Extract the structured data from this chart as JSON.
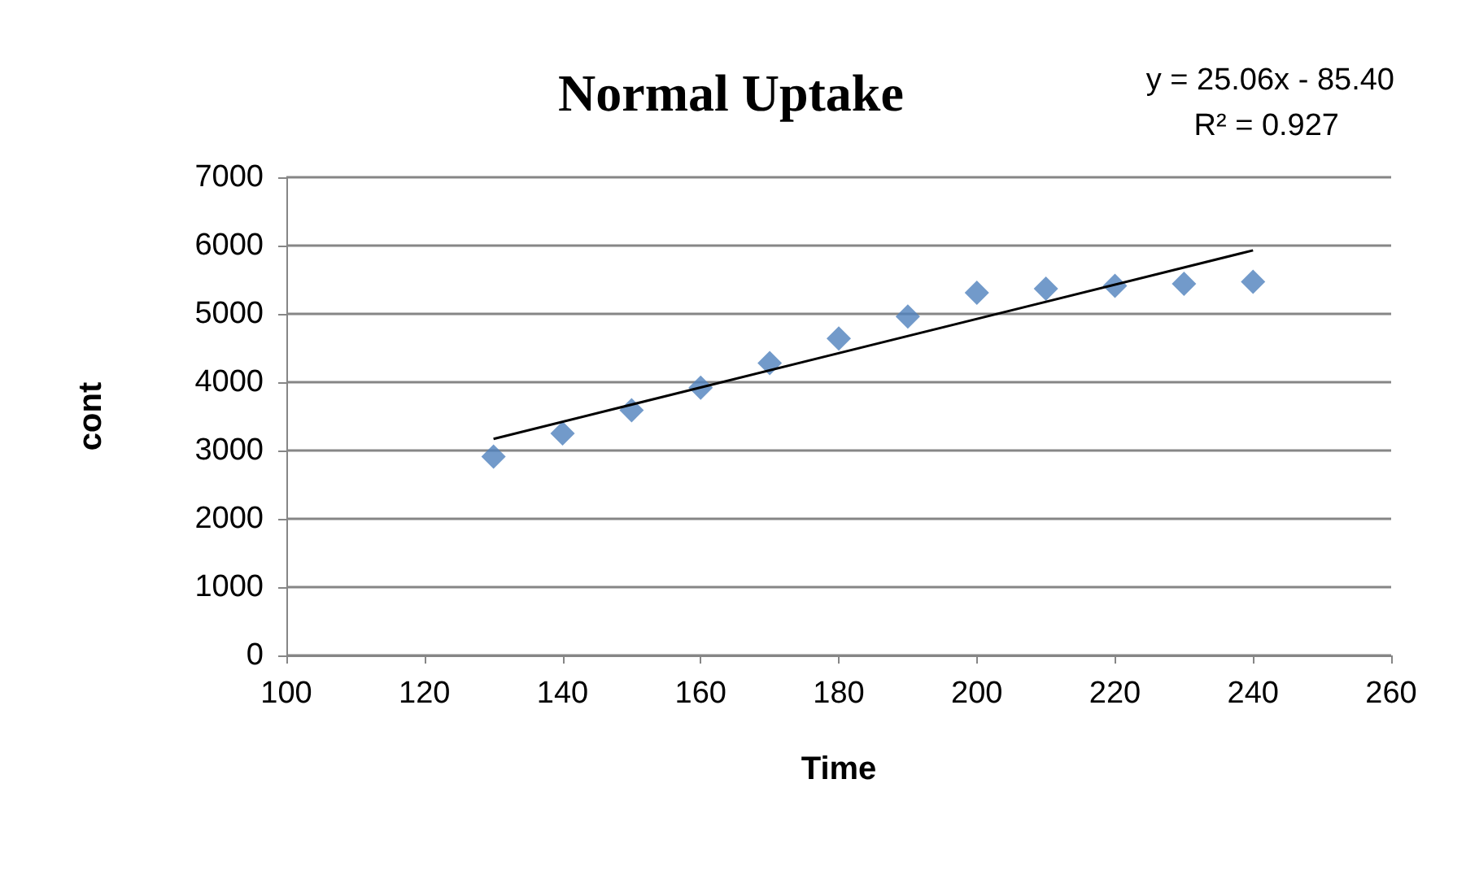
{
  "chart_data": {
    "type": "scatter",
    "title": "Normal Uptake",
    "xlabel": "Time",
    "ylabel": "cont",
    "annotations": [
      "y = 25.06x - 85.40",
      "R² = 0.927"
    ],
    "x": [
      130,
      140,
      150,
      160,
      170,
      180,
      190,
      200,
      210,
      220,
      230,
      240
    ],
    "series": [
      {
        "color": "#4f81bd",
        "marker": "diamond",
        "values": [
          2910,
          3250,
          3590,
          3920,
          4280,
          4640,
          4960,
          5310,
          5370,
          5410,
          5440,
          5470
        ]
      },
      {
        "type": "line",
        "color": "#000000",
        "marker": "none",
        "line_style": "solid",
        "x": [
          130,
          240
        ],
        "values": [
          3170,
          5930
        ]
      }
    ],
    "xlim": [
      100,
      260
    ],
    "xticks": [
      100,
      120,
      140,
      160,
      180,
      200,
      220,
      240,
      260
    ],
    "ylim": [
      0,
      7000
    ],
    "yticks": [
      0,
      1000,
      2000,
      3000,
      4000,
      5000,
      6000,
      7000
    ],
    "grid": "y"
  }
}
